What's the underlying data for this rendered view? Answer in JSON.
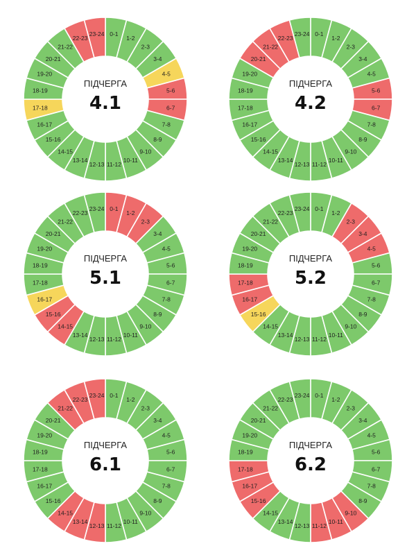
{
  "colors": {
    "on": "#7dc96b",
    "off": "#ee6b6b",
    "maybe": "#f6d65b",
    "center": "#ffffff"
  },
  "chart_data": [
    {
      "type": "donut",
      "title": "ПІДЧЕРГА",
      "number": "4.1",
      "labels": [
        "0-1",
        "1-2",
        "2-3",
        "3-4",
        "4-5",
        "5-6",
        "6-7",
        "7-8",
        "8-9",
        "9-10",
        "10-11",
        "11-12",
        "12-13",
        "13-14",
        "14-15",
        "15-16",
        "16-17",
        "17-18",
        "18-19",
        "19-20",
        "20-21",
        "21-22",
        "22-23",
        "23-24"
      ],
      "status": [
        "on",
        "on",
        "on",
        "on",
        "maybe",
        "off",
        "off",
        "on",
        "on",
        "on",
        "on",
        "on",
        "on",
        "on",
        "on",
        "on",
        "on",
        "maybe",
        "on",
        "on",
        "on",
        "on",
        "off",
        "off"
      ]
    },
    {
      "type": "donut",
      "title": "ПІДЧЕРГА",
      "number": "4.2",
      "labels": [
        "0-1",
        "1-2",
        "2-3",
        "3-4",
        "4-5",
        "5-6",
        "6-7",
        "7-8",
        "8-9",
        "9-10",
        "10-11",
        "11-12",
        "12-13",
        "13-14",
        "14-15",
        "15-16",
        "16-17",
        "17-18",
        "18-19",
        "19-20",
        "20-21",
        "21-22",
        "22-23",
        "23-24"
      ],
      "status": [
        "on",
        "on",
        "on",
        "on",
        "on",
        "off",
        "off",
        "on",
        "on",
        "on",
        "on",
        "on",
        "on",
        "on",
        "on",
        "on",
        "on",
        "on",
        "on",
        "on",
        "off",
        "off",
        "off",
        "on"
      ]
    },
    {
      "type": "donut",
      "title": "ПІДЧЕРГА",
      "number": "5.1",
      "labels": [
        "0-1",
        "1-2",
        "2-3",
        "3-4",
        "4-5",
        "5-6",
        "6-7",
        "7-8",
        "8-9",
        "9-10",
        "10-11",
        "11-12",
        "12-13",
        "13-14",
        "14-15",
        "15-16",
        "16-17",
        "17-18",
        "18-19",
        "19-20",
        "20-21",
        "21-22",
        "22-23",
        "23-24"
      ],
      "status": [
        "off",
        "off",
        "off",
        "on",
        "on",
        "on",
        "on",
        "on",
        "on",
        "on",
        "on",
        "on",
        "on",
        "on",
        "off",
        "off",
        "maybe",
        "on",
        "on",
        "on",
        "on",
        "on",
        "on",
        "on"
      ]
    },
    {
      "type": "donut",
      "title": "ПІДЧЕРГА",
      "number": "5.2",
      "labels": [
        "0-1",
        "1-2",
        "2-3",
        "3-4",
        "4-5",
        "5-6",
        "6-7",
        "7-8",
        "8-9",
        "9-10",
        "10-11",
        "11-12",
        "12-13",
        "13-14",
        "14-15",
        "15-16",
        "16-17",
        "17-18",
        "18-19",
        "19-20",
        "20-21",
        "21-22",
        "22-23",
        "23-24"
      ],
      "status": [
        "on",
        "on",
        "off",
        "off",
        "off",
        "on",
        "on",
        "on",
        "on",
        "on",
        "on",
        "on",
        "on",
        "on",
        "on",
        "maybe",
        "off",
        "off",
        "on",
        "on",
        "on",
        "on",
        "on",
        "on"
      ]
    },
    {
      "type": "donut",
      "title": "ПІДЧЕРГА",
      "number": "6.1",
      "labels": [
        "0-1",
        "1-2",
        "2-3",
        "3-4",
        "4-5",
        "5-6",
        "6-7",
        "7-8",
        "8-9",
        "9-10",
        "10-11",
        "11-12",
        "12-13",
        "13-14",
        "14-15",
        "15-16",
        "16-17",
        "17-18",
        "18-19",
        "19-20",
        "20-21",
        "21-22",
        "22-23",
        "23-24"
      ],
      "status": [
        "on",
        "on",
        "on",
        "on",
        "on",
        "on",
        "on",
        "on",
        "on",
        "on",
        "on",
        "on",
        "off",
        "off",
        "off",
        "on",
        "on",
        "on",
        "on",
        "on",
        "on",
        "off",
        "off",
        "off"
      ]
    },
    {
      "type": "donut",
      "title": "ПІДЧЕРГА",
      "number": "6.2",
      "labels": [
        "0-1",
        "1-2",
        "2-3",
        "3-4",
        "4-5",
        "5-6",
        "6-7",
        "7-8",
        "8-9",
        "9-10",
        "10-11",
        "11-12",
        "12-13",
        "13-14",
        "14-15",
        "15-16",
        "16-17",
        "17-18",
        "18-19",
        "19-20",
        "20-21",
        "21-22",
        "22-23",
        "23-24"
      ],
      "status": [
        "on",
        "on",
        "on",
        "on",
        "on",
        "on",
        "on",
        "on",
        "on",
        "off",
        "off",
        "off",
        "on",
        "on",
        "on",
        "off",
        "off",
        "off",
        "on",
        "on",
        "on",
        "on",
        "on",
        "on"
      ]
    }
  ]
}
